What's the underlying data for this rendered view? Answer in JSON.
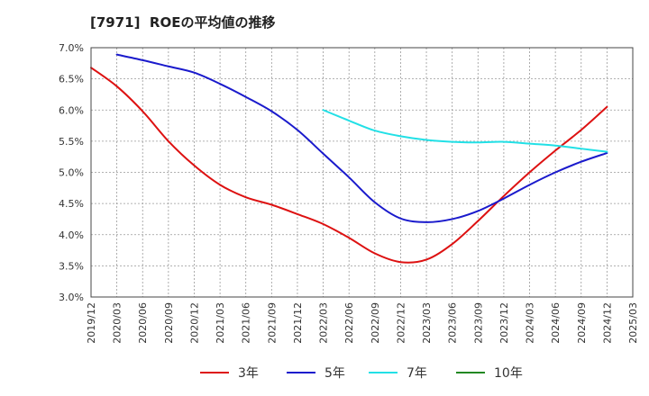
{
  "title": "[7971]  ROEの平均値の推移",
  "chart_data": {
    "type": "line",
    "title": "[7971]  ROEの平均値の推移",
    "x": [
      "2019/12",
      "2020/03",
      "2020/06",
      "2020/09",
      "2020/12",
      "2021/03",
      "2021/06",
      "2021/09",
      "2021/12",
      "2022/03",
      "2022/06",
      "2022/09",
      "2022/12",
      "2023/03",
      "2023/06",
      "2023/09",
      "2023/12",
      "2024/03",
      "2024/06",
      "2024/09",
      "2024/12",
      "2025/03"
    ],
    "y_ticks": [
      "3.0%",
      "3.5%",
      "4.0%",
      "4.5%",
      "5.0%",
      "5.5%",
      "6.0%",
      "6.5%",
      "7.0%"
    ],
    "ylim": [
      3.0,
      7.0
    ],
    "grid": true,
    "legend_position": "bottom",
    "series": [
      {
        "name": "3年",
        "color": "#dd1111",
        "values": [
          6.68,
          6.38,
          5.98,
          5.5,
          5.11,
          4.8,
          4.6,
          4.48,
          4.33,
          4.17,
          3.95,
          3.7,
          3.56,
          3.6,
          3.85,
          4.22,
          4.62,
          5.0,
          5.35,
          5.68,
          6.05,
          null
        ]
      },
      {
        "name": "5年",
        "color": "#1a1acc",
        "values": [
          null,
          6.89,
          6.8,
          6.7,
          6.6,
          6.42,
          6.21,
          5.98,
          5.68,
          5.3,
          4.92,
          4.52,
          4.26,
          4.2,
          4.25,
          4.38,
          4.58,
          4.8,
          5.0,
          5.17,
          5.31,
          null
        ]
      },
      {
        "name": "7年",
        "color": "#22e0e6",
        "values": [
          null,
          null,
          null,
          null,
          null,
          null,
          null,
          null,
          null,
          6.0,
          5.83,
          5.67,
          5.58,
          5.52,
          5.49,
          5.48,
          5.49,
          5.46,
          5.43,
          5.38,
          5.33,
          null
        ]
      },
      {
        "name": "10年",
        "color": "#228822",
        "values": [
          null,
          null,
          null,
          null,
          null,
          null,
          null,
          null,
          null,
          null,
          null,
          null,
          null,
          null,
          null,
          null,
          null,
          null,
          null,
          null,
          null,
          null
        ]
      }
    ]
  }
}
